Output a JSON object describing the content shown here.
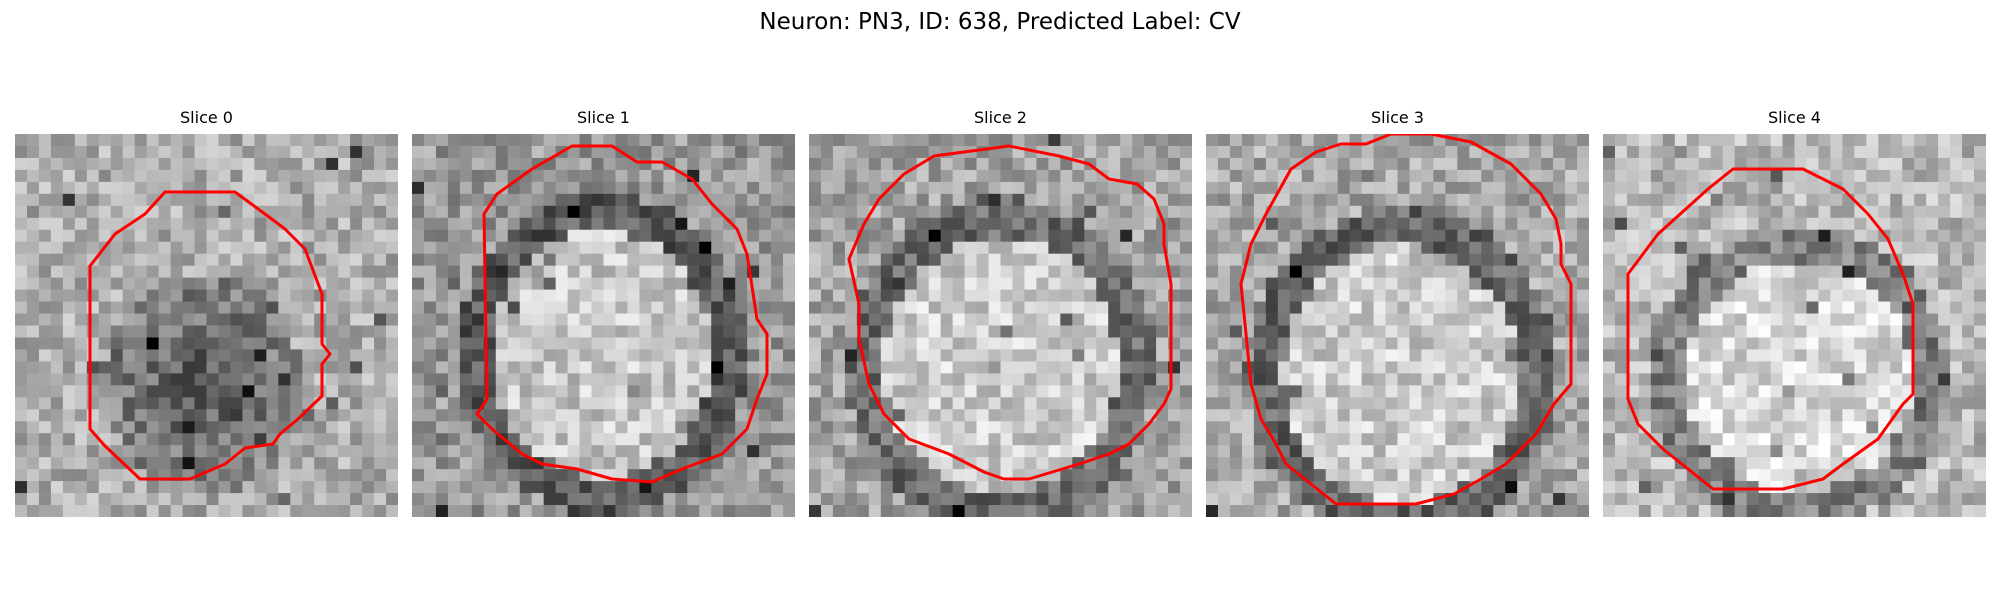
{
  "figure": {
    "title": "Neuron: PN3, ID: 638, Predicted Label: CV"
  },
  "slices": [
    {
      "title": "Slice 0"
    },
    {
      "title": "Slice 1"
    },
    {
      "title": "Slice 2"
    },
    {
      "title": "Slice 3"
    },
    {
      "title": "Slice 4"
    }
  ],
  "colors": {
    "contour": "#ff0000",
    "background": "#ffffff"
  }
}
